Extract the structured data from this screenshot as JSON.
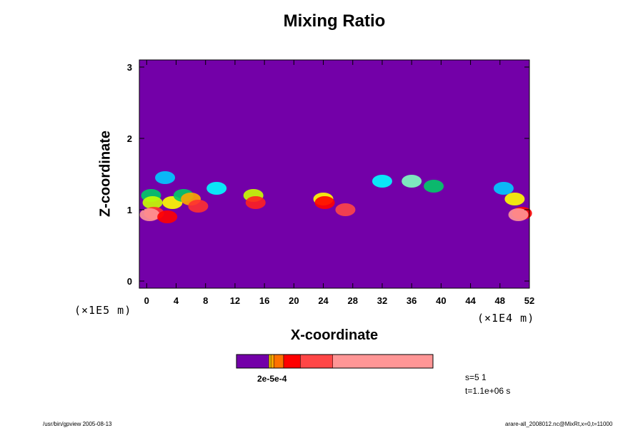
{
  "chart_data": {
    "type": "heatmap",
    "title": "Mixing Ratio",
    "xlabel": "X-coordinate",
    "ylabel": "Z-coordinate",
    "x_unit": "(×1E4 m)",
    "y_unit": "(×1E5 m)",
    "xlim": [
      -1,
      52
    ],
    "ylim": [
      -0.1,
      3.1
    ],
    "x_ticks": [
      "0",
      "4",
      "8",
      "12",
      "16",
      "20",
      "24",
      "28",
      "32",
      "36",
      "40",
      "44",
      "48",
      "52"
    ],
    "y_ticks": [
      "0",
      "1",
      "2",
      "3"
    ],
    "background_color": "#7300A8",
    "colorbar": {
      "colors": [
        "#7300A8",
        "#FFD200",
        "#FFA500",
        "#FF7000",
        "#FF0000",
        "#FF4646",
        "#FF9696"
      ],
      "fractions": [
        0.165,
        0.01,
        0.015,
        0.05,
        0.085,
        0.165,
        0.51
      ],
      "label": "2e-5e-4"
    },
    "features": [
      {
        "x": 0.6,
        "z": 1.2,
        "color": "#00CC66"
      },
      {
        "x": 0.8,
        "z": 1.1,
        "color": "#C8FF00"
      },
      {
        "x": 1.0,
        "z": 0.95,
        "color": "#FF3030"
      },
      {
        "x": 0.4,
        "z": 0.93,
        "color": "#FF9696"
      },
      {
        "x": 2.5,
        "z": 1.45,
        "color": "#00CCFF"
      },
      {
        "x": 3.5,
        "z": 1.1,
        "color": "#FFFF00"
      },
      {
        "x": 2.8,
        "z": 0.9,
        "color": "#FF0000"
      },
      {
        "x": 5.0,
        "z": 1.2,
        "color": "#00CC66"
      },
      {
        "x": 6.0,
        "z": 1.15,
        "color": "#FFA500"
      },
      {
        "x": 7.0,
        "z": 1.05,
        "color": "#FF3030"
      },
      {
        "x": 9.5,
        "z": 1.3,
        "color": "#00FFFF"
      },
      {
        "x": 14.5,
        "z": 1.2,
        "color": "#C8FF00"
      },
      {
        "x": 14.8,
        "z": 1.1,
        "color": "#FF2020"
      },
      {
        "x": 24.0,
        "z": 1.15,
        "color": "#FFFF00"
      },
      {
        "x": 24.2,
        "z": 1.1,
        "color": "#FF0000"
      },
      {
        "x": 27.0,
        "z": 1.0,
        "color": "#FF4646"
      },
      {
        "x": 32.0,
        "z": 1.4,
        "color": "#00FFFF"
      },
      {
        "x": 36.0,
        "z": 1.4,
        "color": "#80FFC0"
      },
      {
        "x": 39.0,
        "z": 1.33,
        "color": "#00CC66"
      },
      {
        "x": 48.5,
        "z": 1.3,
        "color": "#00CCFF"
      },
      {
        "x": 50.0,
        "z": 1.15,
        "color": "#FFFF00"
      },
      {
        "x": 51.0,
        "z": 0.95,
        "color": "#FF0000"
      },
      {
        "x": 50.5,
        "z": 0.93,
        "color": "#FF9696"
      }
    ]
  },
  "stats": {
    "s": "s=5 1",
    "t": "t=1.1e+06 s"
  },
  "footer": {
    "left": "/usr/bin/gpview 2005-08-13",
    "right": "arare-all_2008012.nc@MixRt,x=0,t=11000"
  }
}
